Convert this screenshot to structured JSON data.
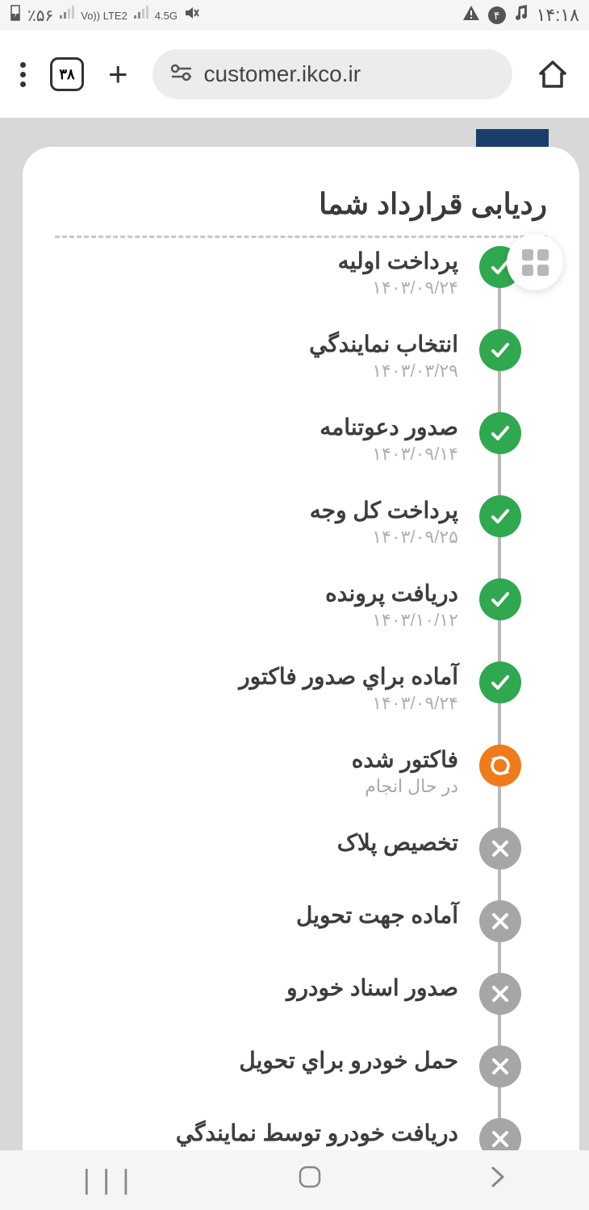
{
  "status_bar": {
    "battery": "٪۵۶",
    "sim1": "Vo)) LTE2",
    "sim2": "4.5G",
    "notif_count": "۴",
    "time": "۱۴:۱۸"
  },
  "browser": {
    "tab_count": "۳۸",
    "url": "customer.ikco.ir"
  },
  "modal": {
    "title": "ردیابی قرارداد شما"
  },
  "steps": [
    {
      "label": "پرداخت اولیه",
      "date": "۱۴۰۳/۰۹/۲۴",
      "status": "done"
    },
    {
      "label": "انتخاب نمايندگي",
      "date": "۱۴۰۳/۰۳/۲۹",
      "status": "done"
    },
    {
      "label": "صدور دعوتنامه",
      "date": "۱۴۰۳/۰۹/۱۴",
      "status": "done"
    },
    {
      "label": "پرداخت کل وجه",
      "date": "۱۴۰۳/۰۹/۲۵",
      "status": "done"
    },
    {
      "label": "دریافت پرونده",
      "date": "۱۴۰۳/۱۰/۱۲",
      "status": "done"
    },
    {
      "label": "آماده براي صدور فاکتور",
      "date": "۱۴۰۳/۰۹/۲۴",
      "status": "done"
    },
    {
      "label": "فاکتور شده",
      "date": "در حال انجام",
      "status": "progress"
    },
    {
      "label": "تخصیص پلاک",
      "date": "",
      "status": "pending"
    },
    {
      "label": "آماده جهت تحویل",
      "date": "",
      "status": "pending"
    },
    {
      "label": "صدور اسناد خودرو",
      "date": "",
      "status": "pending"
    },
    {
      "label": "حمل خودرو براي تحویل",
      "date": "",
      "status": "pending"
    },
    {
      "label": "دریافت خودرو توسط نمايندگي",
      "date": "",
      "status": "pending"
    }
  ],
  "colors": {
    "done": "#2fa84f",
    "progress": "#f07b1a",
    "pending": "#a6a6a6"
  }
}
